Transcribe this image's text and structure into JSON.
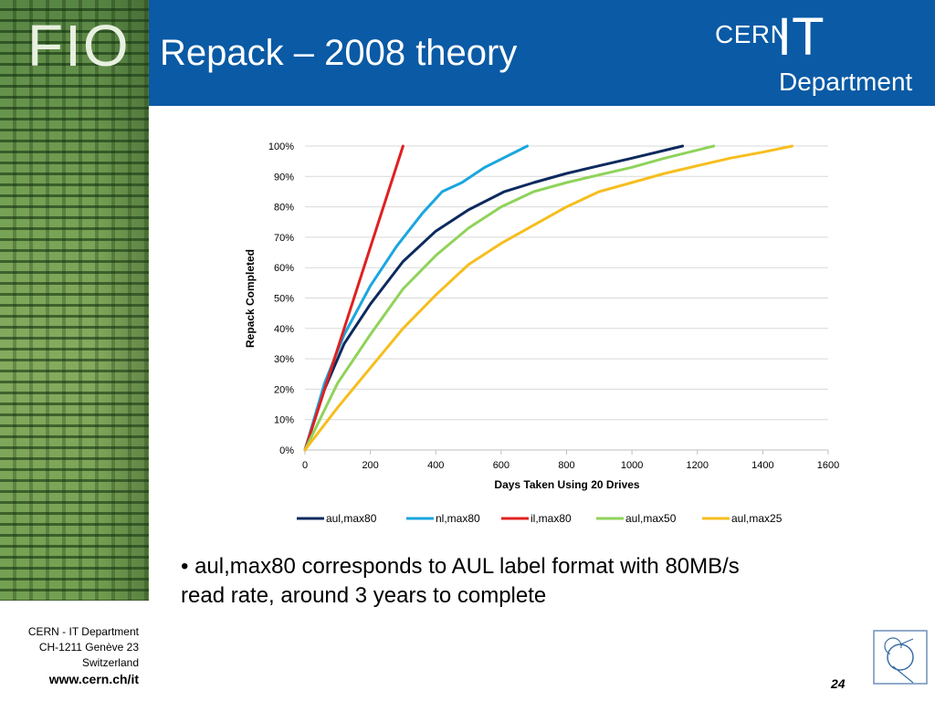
{
  "slide": {
    "brand": "FIO",
    "title": "Repack – 2008 theory",
    "logo": {
      "cern": "CERN",
      "it": "IT",
      "department": "Department"
    },
    "bullet": "• aul,max80 corresponds to AUL label format with 80MB/s read rate, around 3 years to complete",
    "footer": {
      "address": [
        "CERN - IT Department",
        "CH-1211 Genève 23",
        "Switzerland"
      ],
      "url": "www.cern.ch/it",
      "page_number": "24"
    },
    "colors": {
      "header": "#0a5aa5",
      "grid": "#d9d9d9"
    }
  },
  "chart_data": {
    "type": "line",
    "title": "",
    "xlabel": "Days Taken Using 20 Drives",
    "ylabel": "Repack Completed",
    "xlim": [
      0,
      1600
    ],
    "ylim": [
      0,
      100
    ],
    "x_ticks": [
      "0",
      "200",
      "400",
      "600",
      "800",
      "1000",
      "1200",
      "1400",
      "1600"
    ],
    "y_ticks": [
      "0%",
      "10%",
      "20%",
      "30%",
      "40%",
      "50%",
      "60%",
      "70%",
      "80%",
      "90%",
      "100%"
    ],
    "grid": true,
    "legend_position": "bottom",
    "series": [
      {
        "name": "aul,max80",
        "color": "#0d2a5e",
        "points": [
          [
            0,
            0
          ],
          [
            60,
            20
          ],
          [
            120,
            35
          ],
          [
            200,
            48
          ],
          [
            300,
            62
          ],
          [
            400,
            72
          ],
          [
            500,
            79
          ],
          [
            610,
            85
          ],
          [
            700,
            88
          ],
          [
            800,
            91
          ],
          [
            900,
            93.5
          ],
          [
            1000,
            96
          ],
          [
            1155,
            100
          ]
        ]
      },
      {
        "name": "nl,max80",
        "color": "#1aa6df",
        "points": [
          [
            0,
            0
          ],
          [
            60,
            22
          ],
          [
            120,
            38
          ],
          [
            200,
            54
          ],
          [
            280,
            67
          ],
          [
            360,
            78
          ],
          [
            420,
            85
          ],
          [
            480,
            88
          ],
          [
            550,
            93
          ],
          [
            680,
            100
          ]
        ]
      },
      {
        "name": "il,max80",
        "color": "#e02020",
        "points": [
          [
            0,
            0
          ],
          [
            300,
            100
          ]
        ]
      },
      {
        "name": "aul,max50",
        "color": "#8fd35a",
        "points": [
          [
            0,
            0
          ],
          [
            100,
            22
          ],
          [
            200,
            38
          ],
          [
            300,
            53
          ],
          [
            400,
            64
          ],
          [
            500,
            73
          ],
          [
            600,
            80
          ],
          [
            700,
            85
          ],
          [
            800,
            88
          ],
          [
            900,
            90.5
          ],
          [
            1000,
            93
          ],
          [
            1100,
            96
          ],
          [
            1250,
            100
          ]
        ]
      },
      {
        "name": "aul,max25",
        "color": "#f6be1e",
        "points": [
          [
            0,
            0
          ],
          [
            100,
            14
          ],
          [
            200,
            27
          ],
          [
            300,
            40
          ],
          [
            400,
            51
          ],
          [
            500,
            61
          ],
          [
            600,
            68
          ],
          [
            700,
            74
          ],
          [
            800,
            80
          ],
          [
            900,
            85
          ],
          [
            1000,
            88
          ],
          [
            1100,
            91
          ],
          [
            1200,
            93.5
          ],
          [
            1300,
            96
          ],
          [
            1400,
            98
          ],
          [
            1490,
            100
          ]
        ]
      }
    ]
  }
}
